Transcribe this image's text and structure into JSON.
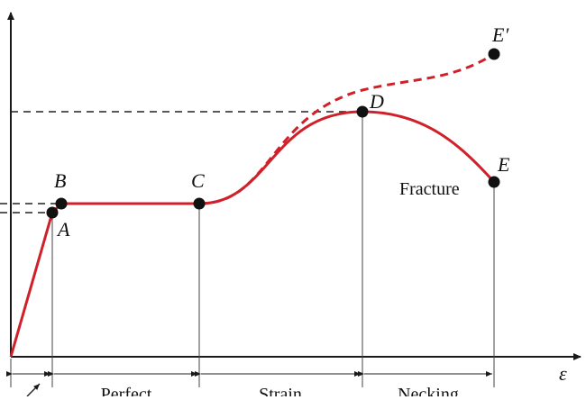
{
  "axes": {
    "x_label": "ε"
  },
  "points": {
    "a": "A",
    "b": "B",
    "c": "C",
    "d": "D",
    "e": "E",
    "e_prime": "E′"
  },
  "annotations": {
    "fracture": "Fracture"
  },
  "regions": {
    "perfect": "Perfect",
    "strain": "Strain",
    "necking": "Necking"
  },
  "colors": {
    "curve": "#d0202a",
    "axis": "#1a1a1a",
    "guide": "#222222",
    "point": "#111111"
  }
}
